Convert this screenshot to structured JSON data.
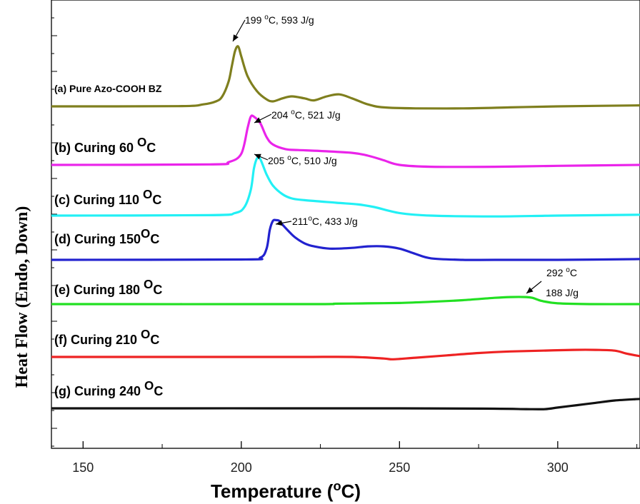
{
  "chart_data": {
    "type": "line",
    "title": "",
    "xlabel_main": "Temperature (",
    "xlabel_sup": "o",
    "xlabel_tail": "C)",
    "ylabel": "Heat Flow (Endo, Down)",
    "xlim": [
      140,
      326
    ],
    "xticks": [
      "150",
      "200",
      "250",
      "300"
    ],
    "xtick_values": [
      150,
      200,
      250,
      300
    ],
    "grid": false,
    "series": [
      {
        "label_main": "(a) Pure Azo-COOH BZ",
        "label_sup": "",
        "label_tail": "",
        "color": "#7f7f1e",
        "x": [
          140,
          180,
          188,
          192,
          194,
          196,
          197,
          198,
          199,
          200,
          202,
          205,
          208,
          210,
          213,
          216,
          220,
          223,
          227,
          231,
          235,
          240,
          245,
          255,
          270,
          285,
          300,
          326
        ],
        "y": [
          0,
          0.2,
          2,
          5,
          10,
          25,
          40,
          55,
          60,
          50,
          30,
          15,
          7,
          5,
          8,
          10,
          8,
          6,
          10,
          12,
          8,
          2,
          -1,
          -2,
          -2,
          -1,
          0,
          1
        ]
      },
      {
        "label_main": "(b) Curing 60 ",
        "label_sup": "O",
        "label_tail": "C",
        "color": "#ea24ea",
        "x": [
          140,
          190,
          196,
          200,
          202,
          203,
          204,
          206,
          208,
          210,
          214,
          218,
          225,
          235,
          240,
          245,
          250,
          260,
          280,
          300,
          326
        ],
        "y": [
          0,
          0.5,
          3,
          12,
          40,
          52,
          52,
          45,
          30,
          22,
          17,
          16,
          15,
          13,
          10,
          5,
          0,
          -2,
          -2,
          -1,
          0
        ]
      },
      {
        "label_main": "(c) Curing 110 ",
        "label_sup": "O",
        "label_tail": "C",
        "color": "#22f0f5",
        "x": [
          140,
          190,
          198,
          201,
          203,
          204,
          205,
          206,
          208,
          210,
          213,
          216,
          220,
          230,
          237,
          242,
          250,
          260,
          280,
          300,
          326
        ],
        "y": [
          0,
          0.5,
          3,
          10,
          30,
          55,
          67,
          66,
          48,
          35,
          25,
          20,
          18,
          15,
          13,
          10,
          3,
          0,
          -1,
          0,
          1
        ]
      },
      {
        "label_main": "(d) Curing 150",
        "label_sup": "O",
        "label_tail": "C",
        "color": "#2222cf",
        "x": [
          140,
          200,
          206,
          208,
          209,
          210,
          211,
          212,
          213,
          215,
          217,
          220,
          223,
          228,
          235,
          240,
          245,
          250,
          255,
          260,
          270,
          280,
          300,
          326
        ],
        "y": [
          0,
          0.5,
          3,
          15,
          40,
          52,
          53,
          52,
          47,
          38,
          30,
          22,
          18,
          15,
          16,
          18,
          18,
          15,
          8,
          2,
          0,
          0,
          0,
          1
        ]
      },
      {
        "label_main": "(e) Curing 180 ",
        "label_sup": "O",
        "label_tail": "C",
        "color": "#22e022",
        "x": [
          140,
          220,
          230,
          240,
          250,
          260,
          270,
          280,
          285,
          290,
          292,
          295,
          300,
          310,
          326
        ],
        "y": [
          0,
          0,
          0.5,
          1,
          1.5,
          3,
          5,
          8,
          9,
          9,
          8,
          4,
          1,
          0,
          0
        ]
      },
      {
        "label_main": "(f) Curing 210 ",
        "label_sup": "O",
        "label_tail": "C",
        "color": "#ee2222",
        "x": [
          140,
          200,
          220,
          235,
          245,
          248,
          255,
          265,
          275,
          285,
          295,
          305,
          312,
          318,
          322,
          326
        ],
        "y": [
          0,
          0,
          0,
          0,
          -2,
          -3,
          -1,
          2,
          5,
          7,
          8,
          9,
          9,
          8,
          4,
          1
        ]
      },
      {
        "label_main": "(g) Curing 240 ",
        "label_sup": "O",
        "label_tail": "C",
        "color": "#111111",
        "x": [
          140,
          250,
          280,
          290,
          296,
          300,
          306,
          312,
          318,
          326
        ],
        "y": [
          0,
          0,
          -0.5,
          -1,
          -1,
          1,
          4,
          7,
          10,
          12
        ]
      }
    ],
    "annotations": [
      {
        "t1": "199 ",
        "sup": "o",
        "t2": "C, 593 J/g"
      },
      {
        "t1": "204 ",
        "sup": "o",
        "t2": "C, 521 J/g"
      },
      {
        "t1": "205 ",
        "sup": "o",
        "t2": "C, 510 J/g"
      },
      {
        "t1": "211",
        "sup": "o",
        "t2": "C, 433 J/g"
      },
      {
        "t1": "292 ",
        "sup": "o",
        "t2": "C"
      },
      {
        "t1": "188 J/g",
        "sup": "",
        "t2": ""
      }
    ]
  }
}
